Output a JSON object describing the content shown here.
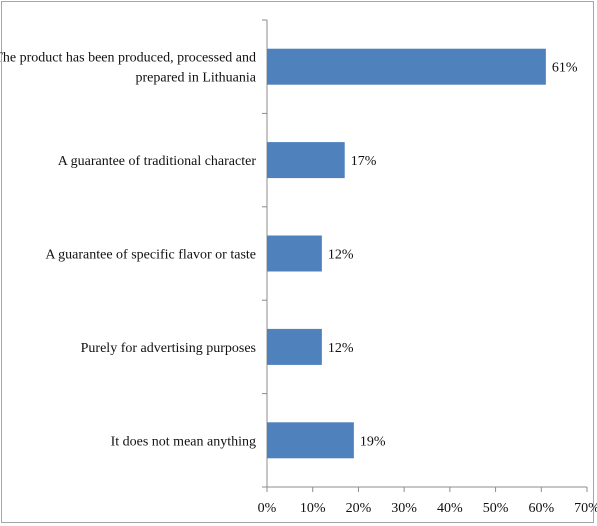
{
  "chart_data": {
    "type": "bar",
    "orientation": "horizontal",
    "categories": [
      [
        "The product has been produced, processed and",
        "prepared in Lithuania"
      ],
      [
        "A guarantee of traditional character"
      ],
      [
        "A guarantee of specific flavor or taste"
      ],
      [
        "Purely for advertising purposes"
      ],
      [
        "It does not mean anything"
      ]
    ],
    "values": [
      61,
      17,
      12,
      12,
      19
    ],
    "data_labels": [
      "61%",
      "17%",
      "12%",
      "12%",
      "19%"
    ],
    "xlim": [
      0,
      70
    ],
    "xticks": [
      0,
      10,
      20,
      30,
      40,
      50,
      60,
      70
    ],
    "xtick_labels": [
      "0%",
      "10%",
      "20%",
      "30%",
      "40%",
      "50%",
      "60%",
      "70%"
    ],
    "bar_color": "#4f81bd",
    "grid": false,
    "legend": "none",
    "title": "",
    "xlabel": "",
    "ylabel": ""
  }
}
